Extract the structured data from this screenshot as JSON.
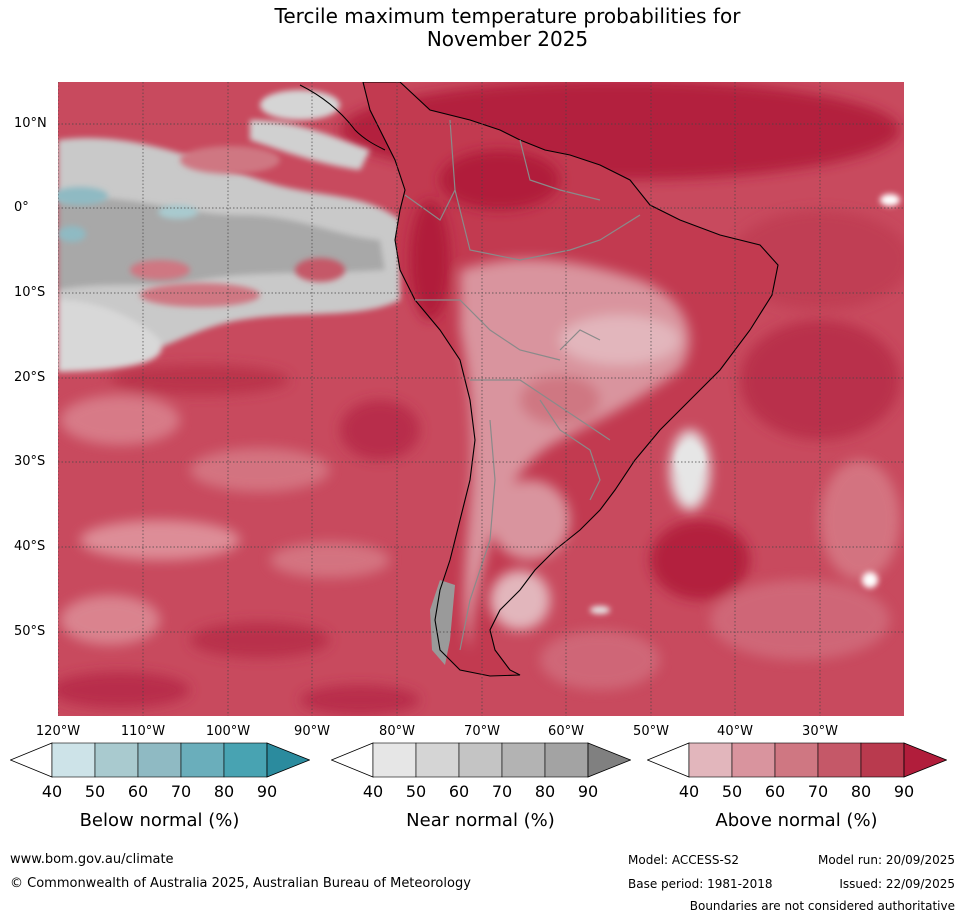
{
  "title": {
    "line1": "Tercile maximum temperature probabilities for",
    "line2": "November 2025"
  },
  "map": {
    "region": "South America",
    "latitude_labels": [
      "10°N",
      "0°",
      "10°S",
      "20°S",
      "30°S",
      "40°S",
      "50°S"
    ],
    "longitude_labels": [
      "120°W",
      "110°W",
      "100°W",
      "90°W",
      "80°W",
      "70°W",
      "60°W",
      "50°W",
      "40°W",
      "30°W"
    ],
    "ocean_base_color": "#c84a5e",
    "land_base_color": "#c23a50"
  },
  "legends": [
    {
      "title": "Below normal (%)",
      "ticks": [
        "40",
        "50",
        "60",
        "70",
        "80",
        "90"
      ],
      "colors": [
        "#ffffff",
        "#cde3e8",
        "#a9cacf",
        "#8fbac3",
        "#6aaebb",
        "#48a3b2",
        "#2b8b9e"
      ]
    },
    {
      "title": "Near normal (%)",
      "ticks": [
        "40",
        "50",
        "60",
        "70",
        "80",
        "90"
      ],
      "colors": [
        "#ffffff",
        "#e6e6e6",
        "#d5d5d5",
        "#c4c4c4",
        "#b3b3b3",
        "#a3a3a3",
        "#808080"
      ]
    },
    {
      "title": "Above normal (%)",
      "ticks": [
        "40",
        "50",
        "60",
        "70",
        "80",
        "90"
      ],
      "colors": [
        "#ffffff",
        "#e2b6bc",
        "#d9949e",
        "#cf7782",
        "#c55868",
        "#b93a4e",
        "#b11d3b"
      ]
    }
  ],
  "footer": {
    "website": "www.bom.gov.au/climate",
    "copyright": "© Commonwealth of Australia 2025, Australian Bureau of Meteorology",
    "model": "Model: ACCESS-S2",
    "model_run": "Model run: 20/09/2025",
    "base_period": "Base period: 1981-2018",
    "issued": "Issued: 22/09/2025",
    "disclaimer": "Boundaries are not considered authoritative"
  }
}
